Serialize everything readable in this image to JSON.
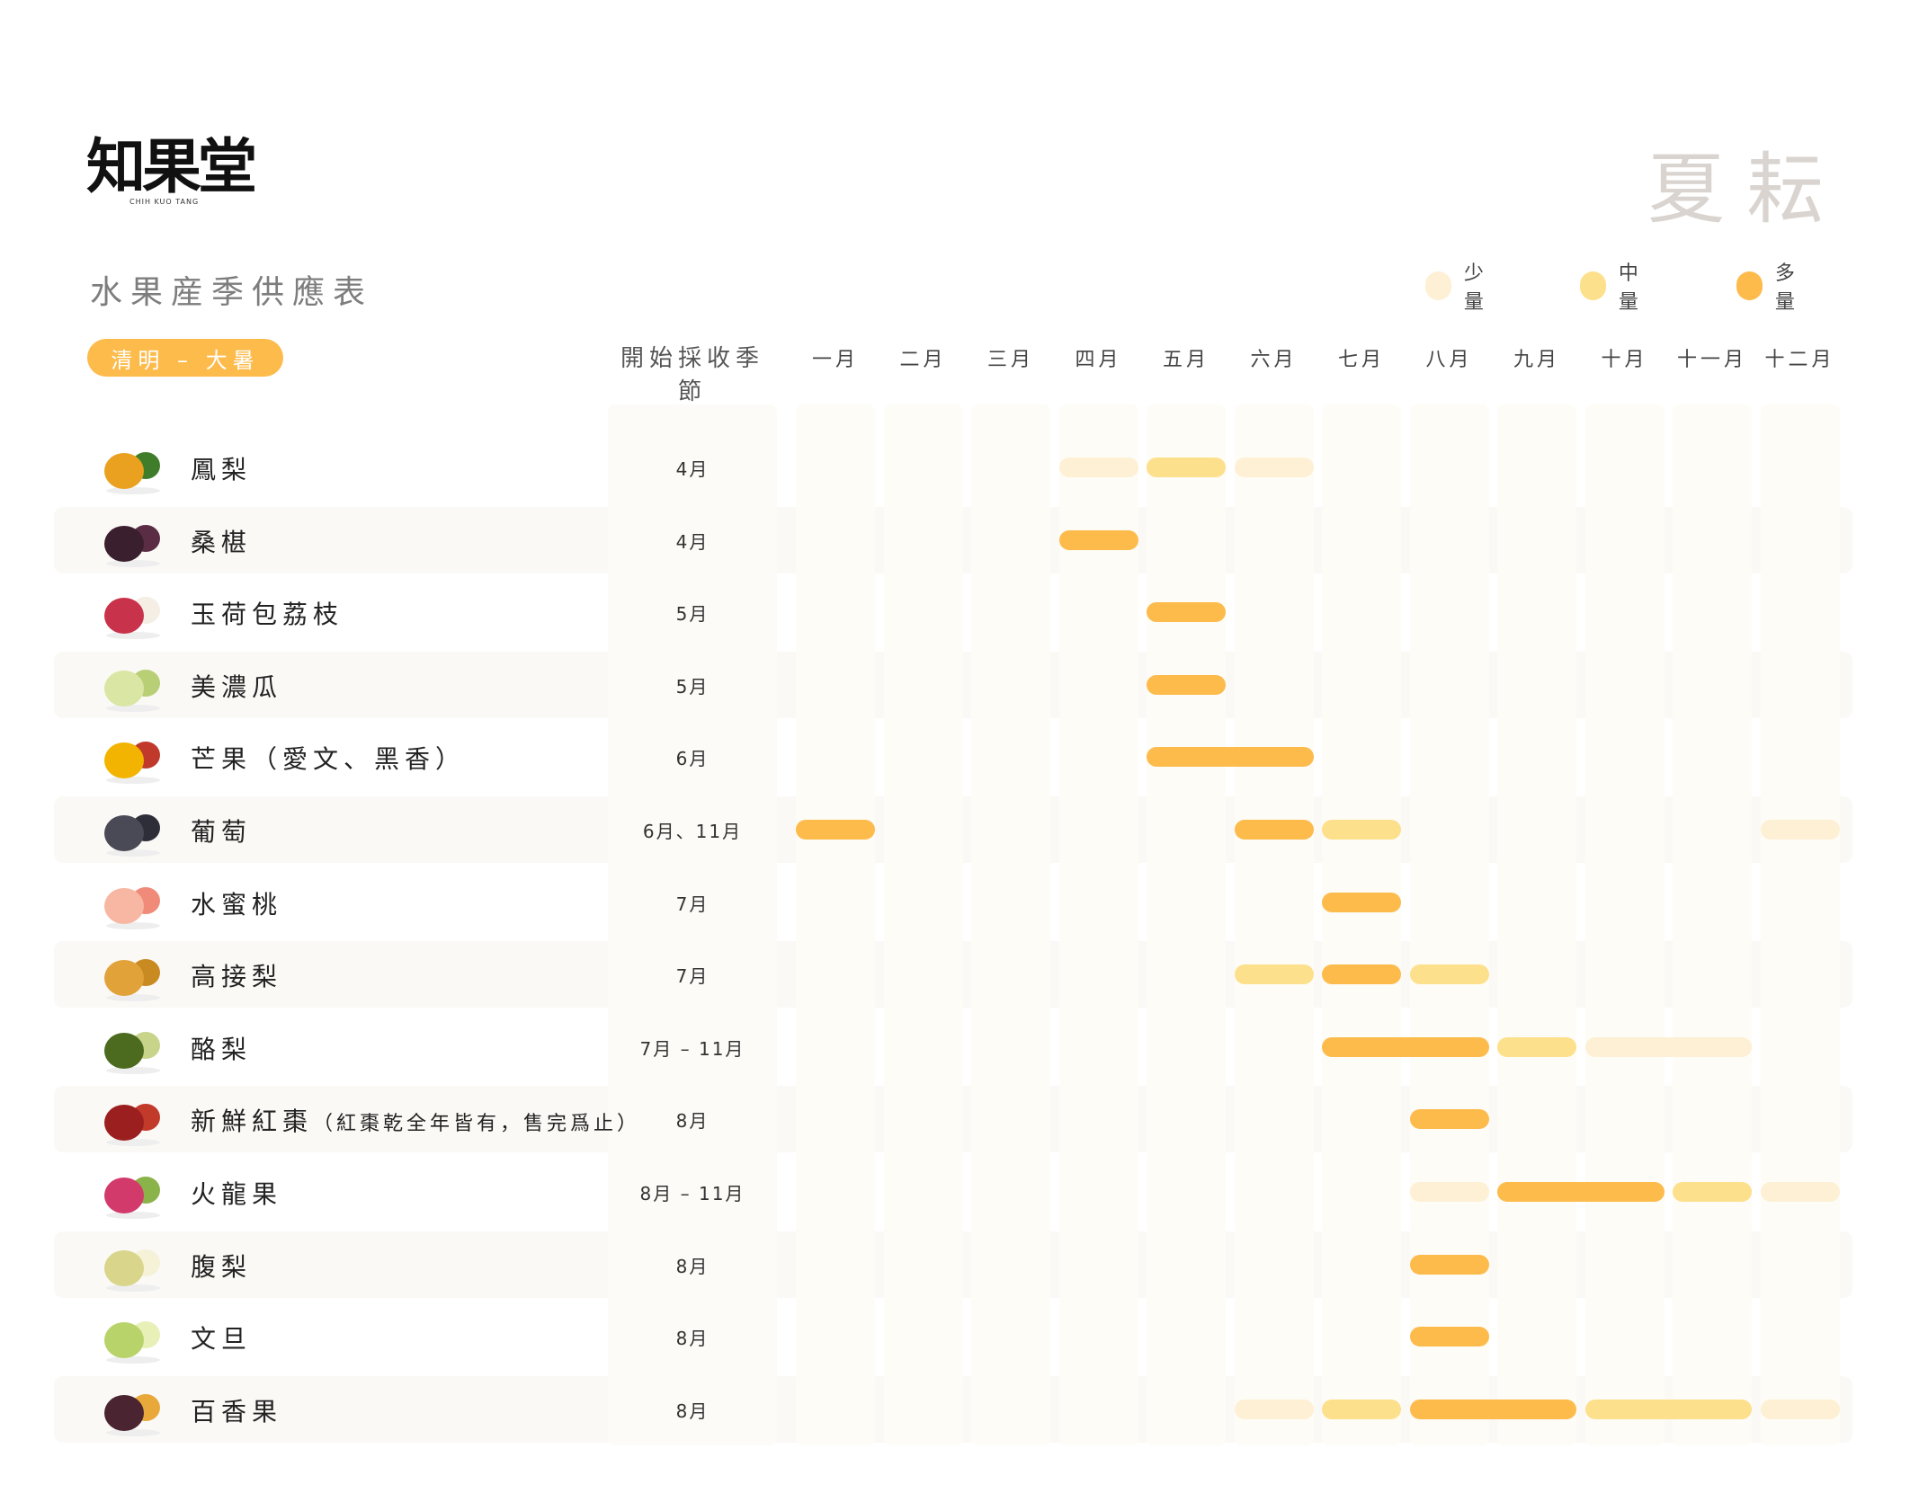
{
  "brand": {
    "logo_text": "知果堂",
    "logo_sub": "CHIH KUO TANG"
  },
  "season_title": "夏耘",
  "title": "水果産季供應表",
  "period_badge": "清明 – 大暑",
  "start_column_header": "開始採收季節",
  "colors": {
    "low": "#fdf0d4",
    "medium": "#fde08c",
    "high": "#fdbb4c",
    "column_bg": "#fefcf6",
    "stripe": "#fbf9f6"
  },
  "legend": [
    {
      "label": "少量",
      "level": "low"
    },
    {
      "label": "中量",
      "level": "medium"
    },
    {
      "label": "多量",
      "level": "high"
    }
  ],
  "chart_data": {
    "type": "table",
    "months": [
      "一月",
      "二月",
      "三月",
      "四月",
      "五月",
      "六月",
      "七月",
      "八月",
      "九月",
      "十月",
      "十一月",
      "十二月"
    ],
    "rows": [
      {
        "name": "鳳梨",
        "icon": "pineapple-icon",
        "start": "4月",
        "segments": [
          {
            "from": 4,
            "to": 4,
            "level": "low"
          },
          {
            "from": 5,
            "to": 5,
            "level": "medium"
          },
          {
            "from": 6,
            "to": 6,
            "level": "low"
          }
        ]
      },
      {
        "name": "桑椹",
        "icon": "mulberry-icon",
        "start": "4月",
        "segments": [
          {
            "from": 4,
            "to": 4,
            "level": "high"
          }
        ]
      },
      {
        "name": "玉荷包荔枝",
        "icon": "lychee-icon",
        "start": "5月",
        "segments": [
          {
            "from": 5,
            "to": 5,
            "level": "high"
          }
        ]
      },
      {
        "name": "美濃瓜",
        "icon": "melon-icon",
        "start": "5月",
        "segments": [
          {
            "from": 5,
            "to": 5,
            "level": "high"
          }
        ]
      },
      {
        "name": "芒果（愛文、黑香）",
        "icon": "mango-icon",
        "start": "6月",
        "segments": [
          {
            "from": 5,
            "to": 6,
            "level": "high"
          }
        ]
      },
      {
        "name": "葡萄",
        "icon": "grape-icon",
        "start": "6月、11月",
        "segments": [
          {
            "from": 1,
            "to": 1,
            "level": "high"
          },
          {
            "from": 6,
            "to": 6,
            "level": "high"
          },
          {
            "from": 7,
            "to": 7,
            "level": "medium"
          },
          {
            "from": 12,
            "to": 12,
            "level": "low"
          }
        ]
      },
      {
        "name": "水蜜桃",
        "icon": "peach-icon",
        "start": "7月",
        "segments": [
          {
            "from": 7,
            "to": 7,
            "level": "high"
          }
        ]
      },
      {
        "name": "高接梨",
        "icon": "asian-pear-icon",
        "start": "7月",
        "segments": [
          {
            "from": 6,
            "to": 6,
            "level": "medium"
          },
          {
            "from": 7,
            "to": 7,
            "level": "high"
          },
          {
            "from": 8,
            "to": 8,
            "level": "medium"
          }
        ]
      },
      {
        "name": "酪梨",
        "icon": "avocado-icon",
        "start": "7月 – 11月",
        "segments": [
          {
            "from": 7,
            "to": 8,
            "level": "high"
          },
          {
            "from": 9,
            "to": 9,
            "level": "medium"
          },
          {
            "from": 10,
            "to": 11,
            "level": "low"
          }
        ]
      },
      {
        "name": "新鮮紅棗",
        "note": "（紅棗乾全年皆有，售完爲止）",
        "icon": "jujube-icon",
        "start": "8月",
        "segments": [
          {
            "from": 8,
            "to": 8,
            "level": "high"
          }
        ]
      },
      {
        "name": "火龍果",
        "icon": "dragonfruit-icon",
        "start": "8月 – 11月",
        "segments": [
          {
            "from": 8,
            "to": 8,
            "level": "low"
          },
          {
            "from": 9,
            "to": 10,
            "level": "high"
          },
          {
            "from": 11,
            "to": 11,
            "level": "medium"
          },
          {
            "from": 12,
            "to": 12,
            "level": "low"
          }
        ]
      },
      {
        "name": "腹梨",
        "icon": "pear-icon",
        "start": "8月",
        "segments": [
          {
            "from": 8,
            "to": 8,
            "level": "high"
          }
        ]
      },
      {
        "name": "文旦",
        "icon": "pomelo-icon",
        "start": "8月",
        "segments": [
          {
            "from": 8,
            "to": 8,
            "level": "high"
          }
        ]
      },
      {
        "name": "百香果",
        "icon": "passionfruit-icon",
        "start": "8月",
        "segments": [
          {
            "from": 6,
            "to": 6,
            "level": "low"
          },
          {
            "from": 7,
            "to": 7,
            "level": "medium"
          },
          {
            "from": 8,
            "to": 9,
            "level": "high"
          },
          {
            "from": 10,
            "to": 11,
            "level": "medium"
          },
          {
            "from": 12,
            "to": 12,
            "level": "low"
          }
        ]
      }
    ]
  }
}
